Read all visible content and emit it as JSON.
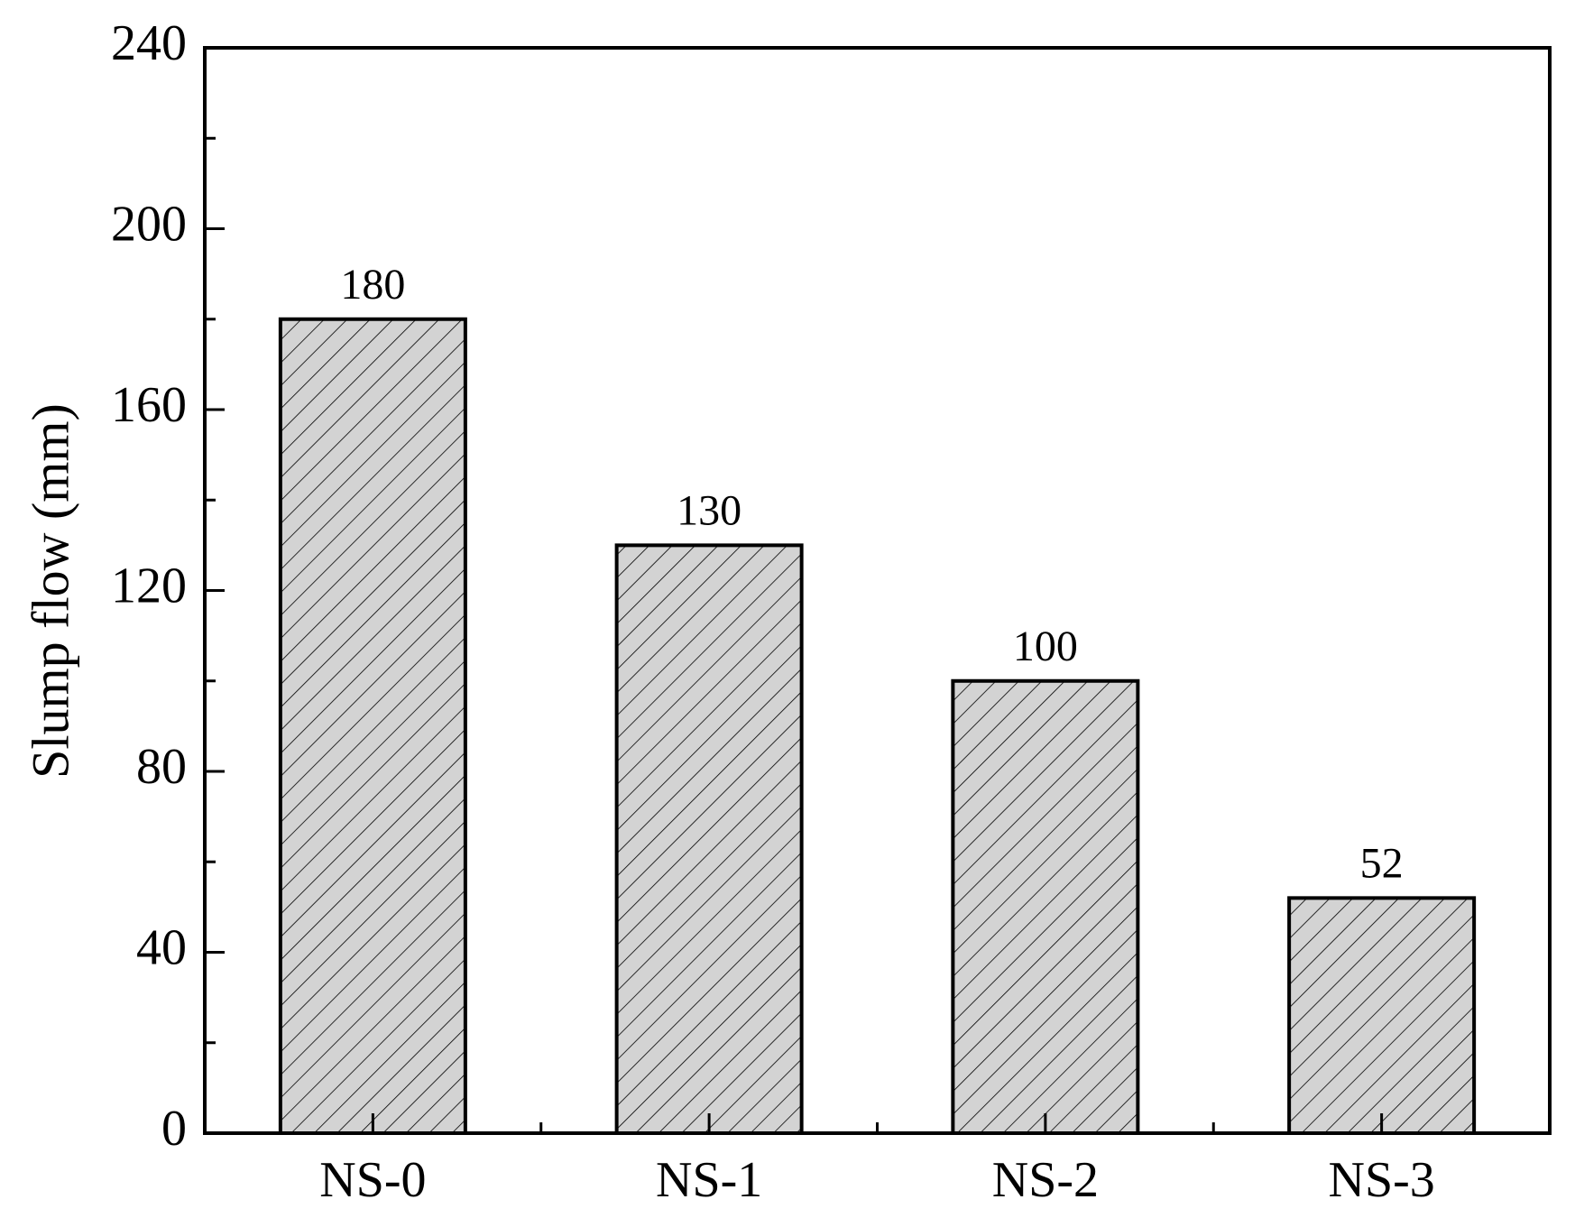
{
  "chart_data": {
    "type": "bar",
    "y_label": "Slump flow (mm)",
    "categories": [
      "NS-0",
      "NS-1",
      "NS-2",
      "NS-3"
    ],
    "values": [
      180,
      130,
      100,
      52
    ],
    "color": "#d3d3d3",
    "ylim": [
      0,
      240
    ],
    "yticks": [
      0,
      40,
      80,
      120,
      160,
      200,
      240
    ],
    "grid": false
  }
}
